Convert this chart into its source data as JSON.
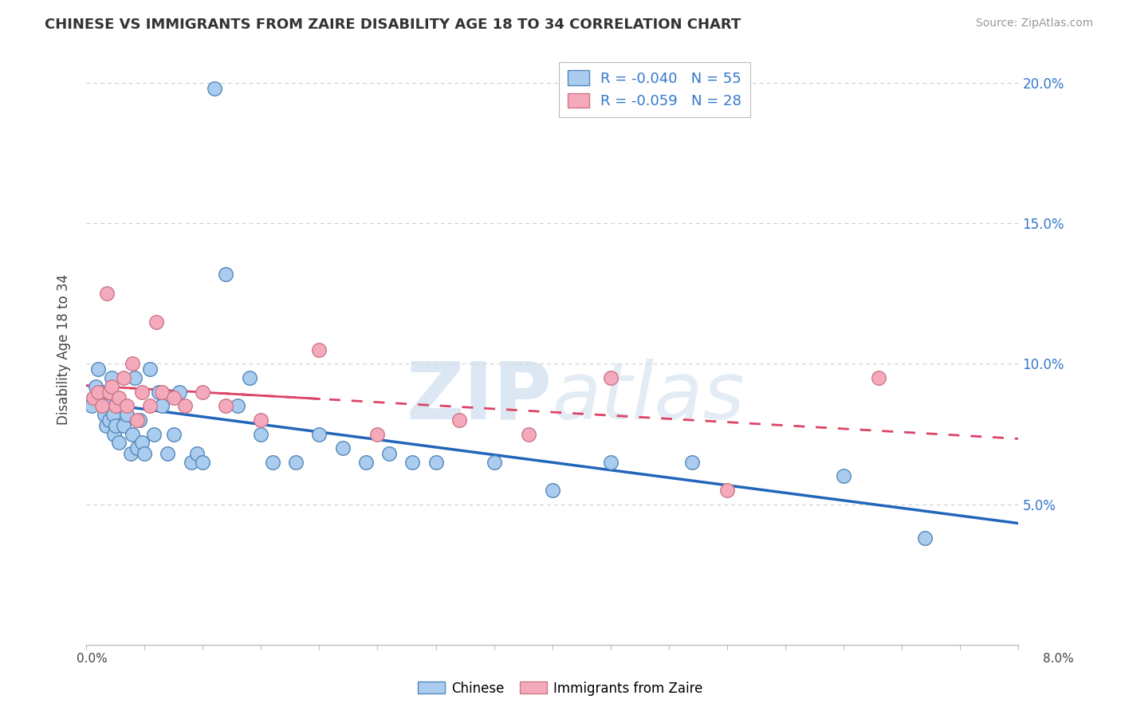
{
  "title": "CHINESE VS IMMIGRANTS FROM ZAIRE DISABILITY AGE 18 TO 34 CORRELATION CHART",
  "source": "Source: ZipAtlas.com",
  "ylabel": "Disability Age 18 to 34",
  "watermark": "ZIPatlas",
  "xlim": [
    0.0,
    8.0
  ],
  "ylim": [
    0.0,
    21.0
  ],
  "yticks": [
    5.0,
    10.0,
    15.0,
    20.0
  ],
  "ytick_labels": [
    "5.0%",
    "10.0%",
    "15.0%",
    "20.0%"
  ],
  "chinese_color": "#aaccee",
  "chinese_edge": "#5588bb",
  "zaire_color": "#f4aabc",
  "zaire_edge": "#cc7788",
  "chinese_line_color": "#2266bb",
  "zaire_line_color": "#dd4466",
  "background_color": "#ffffff",
  "grid_color": "#cccccc",
  "chinese_R": -0.04,
  "chinese_N": 55,
  "zaire_R": -0.059,
  "zaire_N": 28,
  "chinese_x": [
    0.05,
    0.08,
    0.1,
    0.12,
    0.14,
    0.16,
    0.17,
    0.18,
    0.19,
    0.2,
    0.22,
    0.23,
    0.24,
    0.25,
    0.26,
    0.28,
    0.3,
    0.32,
    0.35,
    0.38,
    0.4,
    0.42,
    0.44,
    0.46,
    0.48,
    0.5,
    0.55,
    0.58,
    0.62,
    0.65,
    0.7,
    0.75,
    0.8,
    0.9,
    0.95,
    1.0,
    1.1,
    1.2,
    1.3,
    1.4,
    1.5,
    1.6,
    1.8,
    2.0,
    2.2,
    2.4,
    2.6,
    2.8,
    3.0,
    3.5,
    4.0,
    4.5,
    5.2,
    6.5,
    7.2
  ],
  "chinese_y": [
    8.5,
    9.2,
    9.8,
    8.8,
    9.0,
    8.2,
    7.8,
    9.0,
    8.5,
    8.0,
    9.5,
    8.2,
    7.5,
    7.8,
    8.8,
    7.2,
    8.5,
    7.8,
    8.2,
    6.8,
    7.5,
    9.5,
    7.0,
    8.0,
    7.2,
    6.8,
    9.8,
    7.5,
    9.0,
    8.5,
    6.8,
    7.5,
    9.0,
    6.5,
    6.8,
    6.5,
    19.8,
    13.2,
    8.5,
    9.5,
    7.5,
    6.5,
    6.5,
    7.5,
    7.0,
    6.5,
    6.8,
    6.5,
    6.5,
    6.5,
    5.5,
    6.5,
    6.5,
    6.0,
    3.8
  ],
  "zaire_x": [
    0.06,
    0.1,
    0.14,
    0.18,
    0.2,
    0.22,
    0.25,
    0.28,
    0.32,
    0.35,
    0.4,
    0.44,
    0.48,
    0.55,
    0.6,
    0.65,
    0.75,
    0.85,
    1.0,
    1.2,
    1.5,
    2.0,
    2.5,
    3.2,
    3.8,
    4.5,
    5.5,
    6.8
  ],
  "zaire_y": [
    8.8,
    9.0,
    8.5,
    12.5,
    9.0,
    9.2,
    8.5,
    8.8,
    9.5,
    8.5,
    10.0,
    8.0,
    9.0,
    8.5,
    11.5,
    9.0,
    8.8,
    8.5,
    9.0,
    8.5,
    8.0,
    10.5,
    7.5,
    8.0,
    7.5,
    9.5,
    5.5,
    9.5
  ]
}
